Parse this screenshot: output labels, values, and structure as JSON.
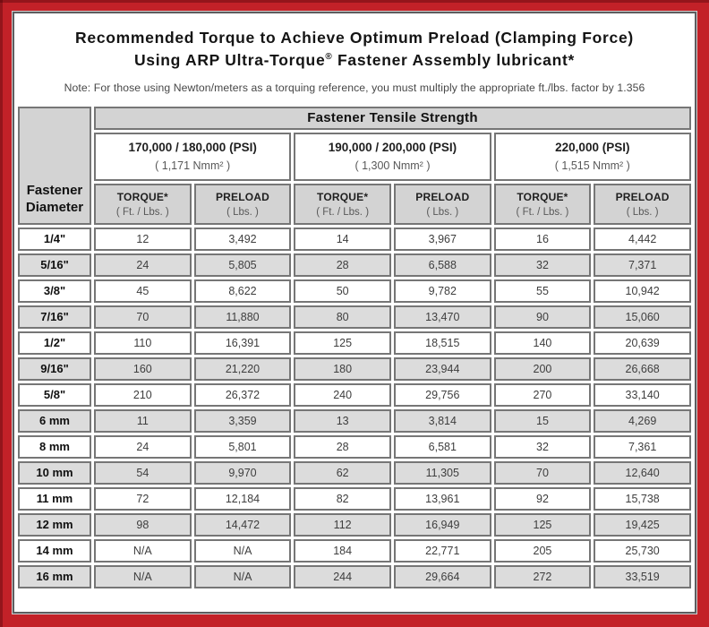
{
  "colors": {
    "frame_red": "#C32128",
    "panel_border": "#5D5D5F",
    "header_gray": "#D3D3D3",
    "stripe_gray": "#DCDCDC",
    "cell_border": "#767676"
  },
  "header": {
    "title_line1": "Recommended Torque to Achieve Optimum Preload (Clamping Force)",
    "title_line2_pre": "Using ARP Ultra-Torque",
    "title_line2_reg": "®",
    "title_line2_post": " Fastener Assembly lubricant*",
    "note": "Note: For those using Newton/meters as a torquing reference, you must multiply the appropriate ft./lbs. factor by 1.356"
  },
  "table": {
    "tensile_strength_header": "Fastener Tensile Strength",
    "diameter_header_line1": "Fastener",
    "diameter_header_line2": "Diameter",
    "groups": [
      {
        "psi": "170,000 / 180,000 (PSI)",
        "nmm": "( 1,171 Nmm² )"
      },
      {
        "psi": "190,000 / 200,000 (PSI)",
        "nmm": "( 1,300 Nmm² )"
      },
      {
        "psi": "220,000 (PSI)",
        "nmm": "( 1,515 Nmm² )"
      }
    ],
    "subheaders": {
      "torque_label": "TORQUE*",
      "torque_unit": "( Ft. / Lbs. )",
      "preload_label": "PRELOAD",
      "preload_unit": "( Lbs. )"
    },
    "rows": [
      {
        "diameter": "1/4\"",
        "values": [
          "12",
          "3,492",
          "14",
          "3,967",
          "16",
          "4,442"
        ]
      },
      {
        "diameter": "5/16\"",
        "values": [
          "24",
          "5,805",
          "28",
          "6,588",
          "32",
          "7,371"
        ]
      },
      {
        "diameter": "3/8\"",
        "values": [
          "45",
          "8,622",
          "50",
          "9,782",
          "55",
          "10,942"
        ]
      },
      {
        "diameter": "7/16\"",
        "values": [
          "70",
          "11,880",
          "80",
          "13,470",
          "90",
          "15,060"
        ]
      },
      {
        "diameter": "1/2\"",
        "values": [
          "110",
          "16,391",
          "125",
          "18,515",
          "140",
          "20,639"
        ]
      },
      {
        "diameter": "9/16\"",
        "values": [
          "160",
          "21,220",
          "180",
          "23,944",
          "200",
          "26,668"
        ]
      },
      {
        "diameter": "5/8\"",
        "values": [
          "210",
          "26,372",
          "240",
          "29,756",
          "270",
          "33,140"
        ]
      },
      {
        "diameter": "6 mm",
        "values": [
          "11",
          "3,359",
          "13",
          "3,814",
          "15",
          "4,269"
        ]
      },
      {
        "diameter": "8 mm",
        "values": [
          "24",
          "5,801",
          "28",
          "6,581",
          "32",
          "7,361"
        ]
      },
      {
        "diameter": "10 mm",
        "values": [
          "54",
          "9,970",
          "62",
          "11,305",
          "70",
          "12,640"
        ]
      },
      {
        "diameter": "11 mm",
        "values": [
          "72",
          "12,184",
          "82",
          "13,961",
          "92",
          "15,738"
        ]
      },
      {
        "diameter": "12 mm",
        "values": [
          "98",
          "14,472",
          "112",
          "16,949",
          "125",
          "19,425"
        ]
      },
      {
        "diameter": "14 mm",
        "values": [
          "N/A",
          "N/A",
          "184",
          "22,771",
          "205",
          "25,730"
        ]
      },
      {
        "diameter": "16 mm",
        "values": [
          "N/A",
          "N/A",
          "244",
          "29,664",
          "272",
          "33,519"
        ]
      }
    ]
  }
}
